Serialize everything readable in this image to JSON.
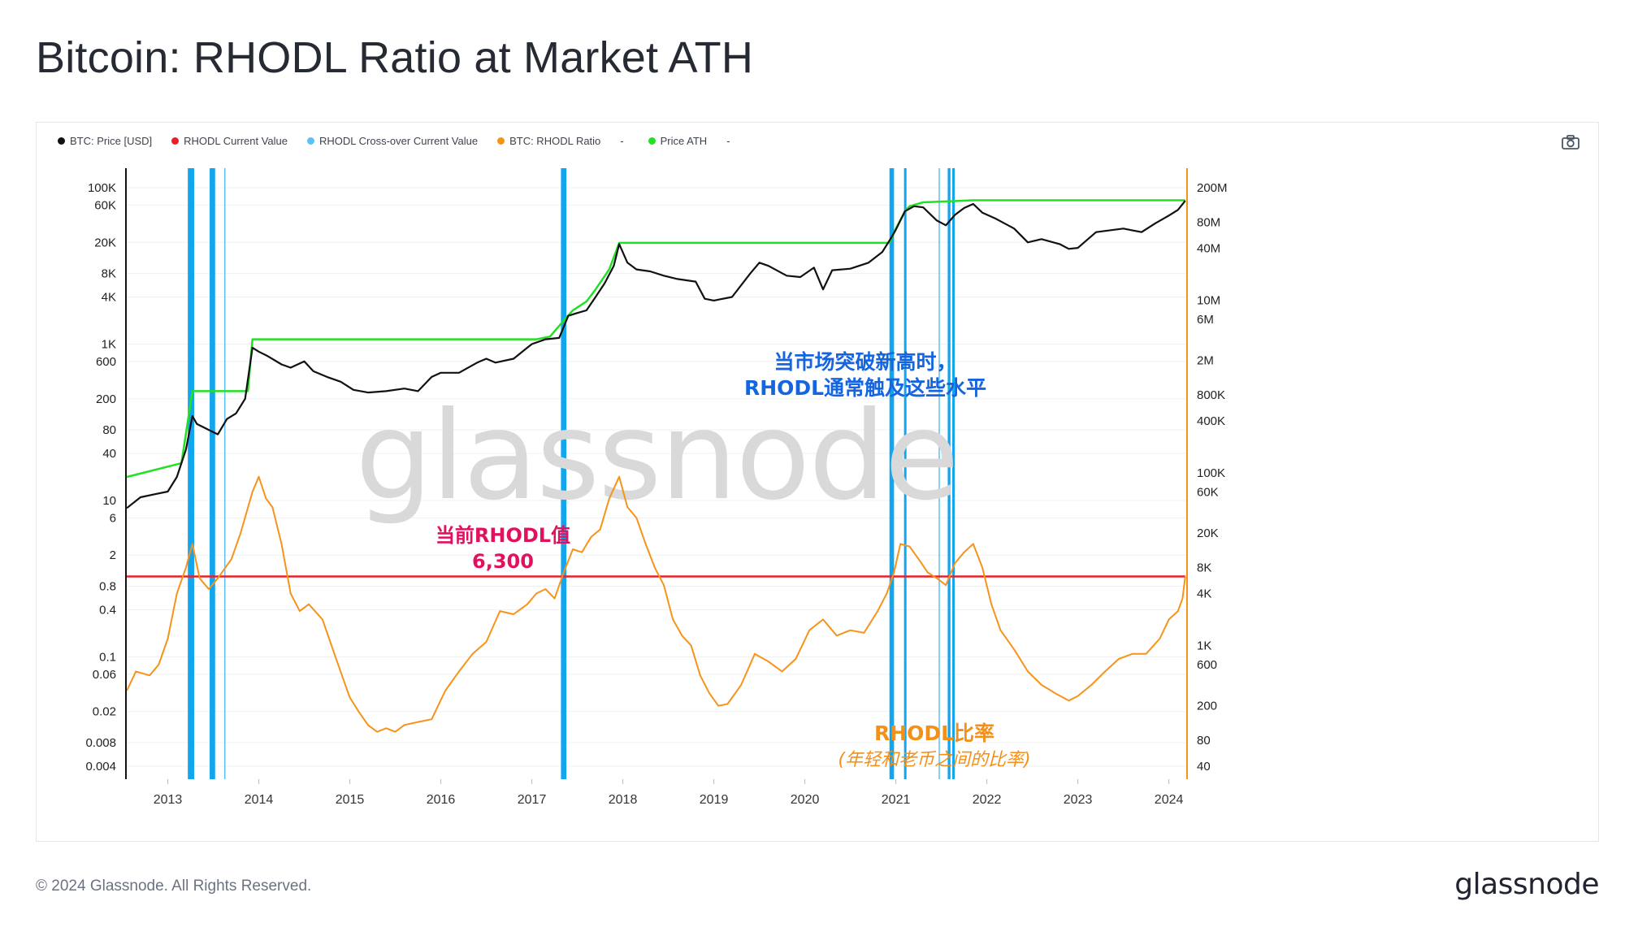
{
  "title": "Bitcoin: RHODL Ratio at Market ATH",
  "footer": {
    "copyright": "© 2024 Glassnode. All Rights Reserved.",
    "logo": "glassnode"
  },
  "legend": [
    {
      "label": "BTC: Price [USD]",
      "color": "#111111"
    },
    {
      "label": "RHODL Current Value",
      "color": "#e8202a"
    },
    {
      "label": "RHODL Cross-over Current Value",
      "color": "#59c3f6"
    },
    {
      "label": "BTC: RHODL Ratio",
      "color": "#f7931a"
    },
    {
      "label": "-",
      "color": "",
      "dash": true
    },
    {
      "label": "Price ATH",
      "color": "#22e022"
    },
    {
      "label": "-",
      "color": "",
      "dash": true
    }
  ],
  "icons": {
    "camera": "camera-icon"
  },
  "colors": {
    "price": "#111111",
    "rhodl": "#f7931a",
    "ath": "#22e022",
    "current": "#e8202a",
    "band": "#12a6ee",
    "band_light": "#59c3f6",
    "annot_blue": "#1565e0",
    "annot_red": "#e0115f",
    "annot_orange": "#f39018"
  },
  "watermark": "glassnode",
  "annotations": {
    "ath_note": [
      "当市场突破新高时，",
      "RHODL通常触及这些水平"
    ],
    "current_note": [
      "当前RHODL值",
      "6,300"
    ],
    "ratio_label": "RHODL比率",
    "ratio_sub": "(年轻和老币之间的比率)"
  },
  "chart_data": {
    "type": "line",
    "x_ticks": [
      "2013",
      "2014",
      "2015",
      "2016",
      "2017",
      "2018",
      "2019",
      "2020",
      "2021",
      "2022",
      "2023",
      "2024"
    ],
    "xlim": [
      2012.54,
      2024.2
    ],
    "left_axis": {
      "scale": "log",
      "ticks": [
        "100K",
        "60K",
        "20K",
        "8K",
        "4K",
        "1K",
        "600",
        "200",
        "80",
        "40",
        "10",
        "6",
        "2",
        "0.8",
        "0.4",
        "0.1",
        "0.06",
        "0.02",
        "0.008",
        "0.004"
      ],
      "tick_values": [
        100000,
        60000,
        20000,
        8000,
        4000,
        1000,
        600,
        200,
        80,
        40,
        10,
        6,
        2,
        0.8,
        0.4,
        0.1,
        0.06,
        0.02,
        0.008,
        0.004
      ]
    },
    "right_axis": {
      "scale": "log",
      "ticks": [
        "200M",
        "80M",
        "40M",
        "10M",
        "6M",
        "2M",
        "800K",
        "400K",
        "100K",
        "60K",
        "20K",
        "8K",
        "4K",
        "1K",
        "600",
        "200",
        "80",
        "40"
      ],
      "tick_values": [
        200000000,
        80000000,
        40000000,
        10000000,
        6000000,
        2000000,
        800000,
        400000,
        100000,
        60000,
        20000,
        8000,
        4000,
        1000,
        600,
        200,
        80,
        40
      ]
    },
    "rhodl_current_value": 6300,
    "series": [
      {
        "name": "BTC: Price [USD]",
        "axis": "left",
        "x": [
          2012.55,
          2012.7,
          2012.85,
          2013.0,
          2013.1,
          2013.2,
          2013.27,
          2013.32,
          2013.45,
          2013.55,
          2013.65,
          2013.75,
          2013.85,
          2013.93,
          2014.0,
          2014.1,
          2014.25,
          2014.35,
          2014.5,
          2014.6,
          2014.75,
          2014.9,
          2015.04,
          2015.2,
          2015.4,
          2015.6,
          2015.75,
          2015.9,
          2016.0,
          2016.2,
          2016.4,
          2016.5,
          2016.6,
          2016.8,
          2016.95,
          2017.0,
          2017.15,
          2017.3,
          2017.4,
          2017.5,
          2017.6,
          2017.7,
          2017.8,
          2017.9,
          2017.96,
          2018.05,
          2018.15,
          2018.3,
          2018.45,
          2018.6,
          2018.8,
          2018.9,
          2019.0,
          2019.2,
          2019.4,
          2019.5,
          2019.6,
          2019.8,
          2019.95,
          2020.1,
          2020.2,
          2020.3,
          2020.5,
          2020.7,
          2020.85,
          2020.95,
          2021.0,
          2021.1,
          2021.2,
          2021.3,
          2021.45,
          2021.55,
          2021.65,
          2021.75,
          2021.85,
          2021.95,
          2022.1,
          2022.3,
          2022.45,
          2022.6,
          2022.8,
          2022.9,
          2023.0,
          2023.2,
          2023.5,
          2023.7,
          2023.85,
          2024.0,
          2024.1,
          2024.18
        ],
        "y": [
          8,
          11,
          12,
          13,
          20,
          45,
          120,
          95,
          80,
          70,
          110,
          130,
          200,
          900,
          800,
          700,
          550,
          500,
          600,
          450,
          380,
          330,
          260,
          240,
          250,
          270,
          250,
          380,
          430,
          430,
          580,
          650,
          580,
          650,
          900,
          1000,
          1150,
          1200,
          2300,
          2500,
          2700,
          4000,
          6000,
          10000,
          19000,
          11000,
          9000,
          8500,
          7500,
          6800,
          6300,
          3800,
          3600,
          4000,
          8000,
          11000,
          10000,
          7500,
          7200,
          9500,
          5000,
          8800,
          9200,
          11000,
          15000,
          23000,
          29000,
          50000,
          58000,
          56000,
          38000,
          33000,
          45000,
          55000,
          62000,
          48000,
          40000,
          30000,
          20000,
          22000,
          19000,
          16500,
          17000,
          27000,
          30000,
          27000,
          35000,
          44000,
          52000,
          68000
        ]
      },
      {
        "name": "Price ATH",
        "axis": "left",
        "x": [
          2012.55,
          2013.15,
          2013.27,
          2013.88,
          2013.93,
          2017.05,
          2017.2,
          2017.35,
          2017.45,
          2017.6,
          2017.7,
          2017.85,
          2017.96,
          2020.93,
          2021.0,
          2021.1,
          2021.15,
          2021.3,
          2021.85,
          2024.18
        ],
        "y": [
          20,
          30,
          250,
          250,
          1150,
          1150,
          1250,
          2000,
          2700,
          3500,
          5000,
          9000,
          19700,
          19700,
          30000,
          50000,
          58000,
          65000,
          69000,
          69000
        ]
      },
      {
        "name": "BTC: RHODL Ratio",
        "axis": "right",
        "x": [
          2012.55,
          2012.65,
          2012.8,
          2012.9,
          2013.0,
          2013.1,
          2013.2,
          2013.27,
          2013.35,
          2013.45,
          2013.55,
          2013.7,
          2013.8,
          2013.93,
          2014.0,
          2014.08,
          2014.15,
          2014.25,
          2014.35,
          2014.45,
          2014.55,
          2014.7,
          2014.85,
          2015.0,
          2015.1,
          2015.2,
          2015.3,
          2015.4,
          2015.5,
          2015.6,
          2015.75,
          2015.9,
          2016.05,
          2016.2,
          2016.35,
          2016.5,
          2016.65,
          2016.8,
          2016.95,
          2017.05,
          2017.15,
          2017.25,
          2017.35,
          2017.45,
          2017.55,
          2017.65,
          2017.75,
          2017.85,
          2017.96,
          2018.05,
          2018.15,
          2018.25,
          2018.35,
          2018.45,
          2018.55,
          2018.65,
          2018.75,
          2018.85,
          2018.95,
          2019.05,
          2019.15,
          2019.3,
          2019.45,
          2019.6,
          2019.75,
          2019.9,
          2020.05,
          2020.2,
          2020.35,
          2020.5,
          2020.65,
          2020.8,
          2020.9,
          2020.98,
          2021.05,
          2021.15,
          2021.25,
          2021.35,
          2021.45,
          2021.55,
          2021.65,
          2021.75,
          2021.85,
          2021.95,
          2022.05,
          2022.15,
          2022.3,
          2022.45,
          2022.6,
          2022.75,
          2022.9,
          2023.0,
          2023.15,
          2023.3,
          2023.45,
          2023.6,
          2023.75,
          2023.9,
          2024.0,
          2024.1,
          2024.15,
          2024.18
        ],
        "y": [
          300,
          500,
          450,
          600,
          1200,
          4000,
          8000,
          15000,
          6000,
          4500,
          6000,
          10000,
          20000,
          60000,
          90000,
          50000,
          40000,
          15000,
          4000,
          2500,
          3000,
          2000,
          700,
          250,
          170,
          120,
          100,
          110,
          100,
          120,
          130,
          140,
          300,
          500,
          800,
          1100,
          2500,
          2300,
          3000,
          4000,
          4500,
          3500,
          7000,
          13000,
          12000,
          18000,
          22000,
          50000,
          90000,
          40000,
          30000,
          15000,
          8000,
          5000,
          2000,
          1300,
          1000,
          450,
          280,
          200,
          210,
          350,
          800,
          650,
          500,
          700,
          1500,
          2000,
          1300,
          1500,
          1400,
          2500,
          4000,
          7000,
          15000,
          14000,
          10000,
          7000,
          6000,
          5000,
          9000,
          12000,
          15000,
          8000,
          3000,
          1500,
          900,
          500,
          350,
          280,
          230,
          260,
          350,
          500,
          700,
          800,
          800,
          1200,
          2000,
          2500,
          3500,
          6300
        ]
      },
      {
        "name": "RHODL Current Value",
        "axis": "right",
        "x": [
          2012.55,
          2024.18
        ],
        "y": [
          6300,
          6300
        ]
      }
    ],
    "crossover_bands": [
      {
        "from": 2013.22,
        "to": 2013.29,
        "style": "solid"
      },
      {
        "from": 2013.46,
        "to": 2013.52,
        "style": "solid"
      },
      {
        "from": 2013.62,
        "to": 2013.63,
        "style": "thin"
      },
      {
        "from": 2017.32,
        "to": 2017.38,
        "style": "solid"
      },
      {
        "from": 2020.93,
        "to": 2020.98,
        "style": "solid"
      },
      {
        "from": 2021.09,
        "to": 2021.11,
        "style": "solid"
      },
      {
        "from": 2021.47,
        "to": 2021.48,
        "style": "thin"
      },
      {
        "from": 2021.57,
        "to": 2021.6,
        "style": "solid"
      },
      {
        "from": 2021.62,
        "to": 2021.64,
        "style": "solid"
      }
    ]
  }
}
